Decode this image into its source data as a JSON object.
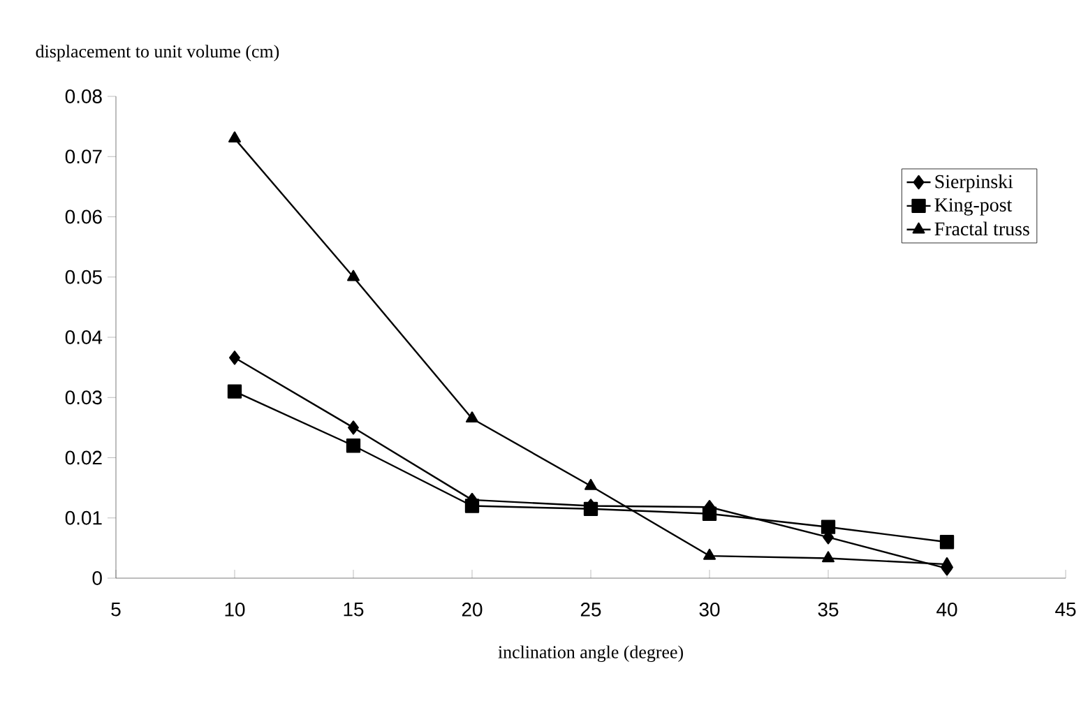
{
  "chart_data": {
    "type": "line",
    "ylabel": "displacement  to unit volume (cm)",
    "xlabel": "inclination angle (degree)",
    "x": [
      10,
      15,
      20,
      25,
      30,
      35,
      40
    ],
    "series": [
      {
        "name": "Sierpinski",
        "color": "#000000",
        "marker": "diamond",
        "values": [
          0.0366,
          0.025,
          0.013,
          0.012,
          0.0118,
          0.0068,
          0.0016
        ]
      },
      {
        "name": "King-post",
        "color": "#000000",
        "marker": "square",
        "values": [
          0.031,
          0.022,
          0.012,
          0.0115,
          0.0107,
          0.0085,
          0.006
        ]
      },
      {
        "name": "Fractal truss",
        "color": "#000000",
        "marker": "triangle",
        "values": [
          0.073,
          0.05,
          0.0265,
          0.0153,
          0.0037,
          0.0033,
          0.0023
        ]
      }
    ],
    "xlim": [
      5,
      45
    ],
    "xticks": [
      5,
      10,
      15,
      20,
      25,
      30,
      35,
      40,
      45
    ],
    "ylim": [
      0,
      0.08
    ],
    "yticks": [
      0,
      0.01,
      0.02,
      0.03,
      0.04,
      0.05,
      0.06,
      0.07,
      0.08
    ],
    "legend": "top right",
    "grid": false,
    "line_style": "solid"
  }
}
